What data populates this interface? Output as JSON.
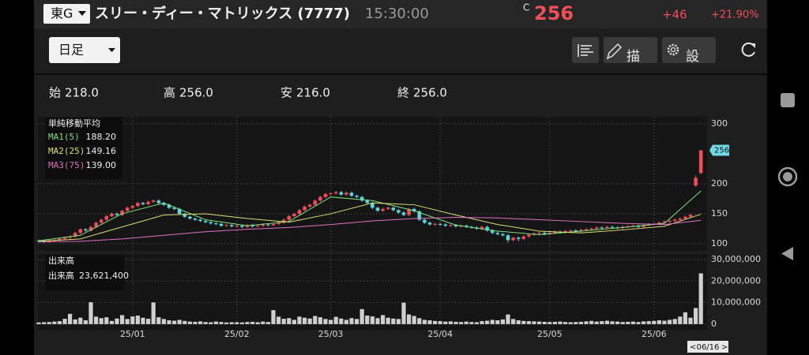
{
  "header": {
    "market": "東G",
    "title": "スリー・ディー・マトリックス (7777)",
    "time": "15:30:00",
    "price_flag": "C",
    "price": "256",
    "change": "+46",
    "change_pct": "+21.90%"
  },
  "toolbar": {
    "period": "日足",
    "draw": "描画",
    "settings": "設定"
  },
  "ohlc": [
    {
      "label": "始",
      "value": "218.0"
    },
    {
      "label": "高",
      "value": "256.0"
    },
    {
      "label": "安",
      "value": "216.0"
    },
    {
      "label": "終",
      "value": "256.0"
    }
  ],
  "cursor_date": "06/16",
  "chart_data": [
    {
      "type": "candlestick",
      "legend_title": "単純移動平均",
      "up_color": "#ef4d5a",
      "down_color": "#5cd6e0",
      "grid": true,
      "ylim": [
        88,
        312
      ],
      "yticks": [
        100,
        150,
        200,
        300
      ],
      "categories": [
        null,
        null,
        null,
        null,
        null,
        null,
        null,
        null,
        null,
        null,
        null,
        null,
        null,
        null,
        null,
        null,
        null,
        null,
        "25/01",
        null,
        null,
        null,
        null,
        null,
        null,
        null,
        null,
        null,
        null,
        null,
        null,
        null,
        null,
        null,
        null,
        null,
        null,
        null,
        "25/02",
        null,
        null,
        null,
        null,
        null,
        null,
        null,
        null,
        null,
        null,
        null,
        null,
        null,
        null,
        null,
        null,
        null,
        "25/03",
        null,
        null,
        null,
        null,
        null,
        null,
        null,
        null,
        null,
        null,
        null,
        null,
        null,
        null,
        null,
        null,
        null,
        null,
        null,
        null,
        "25/04",
        null,
        null,
        null,
        null,
        null,
        null,
        null,
        null,
        null,
        null,
        null,
        null,
        null,
        null,
        null,
        null,
        null,
        null,
        null,
        null,
        "25/05",
        null,
        null,
        null,
        null,
        null,
        null,
        null,
        null,
        null,
        null,
        null,
        null,
        null,
        null,
        null,
        null,
        null,
        null,
        null,
        "25/06",
        null,
        null,
        null,
        null,
        null,
        null,
        null,
        null,
        null
      ],
      "candles": [
        [
          105,
          107,
          102,
          104
        ],
        [
          104,
          106,
          101,
          103
        ],
        [
          103,
          107,
          101,
          105
        ],
        [
          105,
          108,
          103,
          106
        ],
        [
          106,
          110,
          104,
          108
        ],
        [
          108,
          112,
          106,
          110
        ],
        [
          110,
          114,
          108,
          112
        ],
        [
          112,
          120,
          110,
          118
        ],
        [
          118,
          126,
          116,
          124
        ],
        [
          124,
          126,
          120,
          122
        ],
        [
          122,
          130,
          120,
          128
        ],
        [
          128,
          137,
          126,
          135
        ],
        [
          135,
          142,
          133,
          140
        ],
        [
          140,
          148,
          138,
          146
        ],
        [
          146,
          152,
          144,
          150
        ],
        [
          150,
          152,
          146,
          148
        ],
        [
          148,
          157,
          146,
          155
        ],
        [
          155,
          162,
          153,
          160
        ],
        [
          160,
          165,
          158,
          163
        ],
        [
          163,
          170,
          161,
          168
        ],
        [
          168,
          170,
          164,
          166
        ],
        [
          166,
          172,
          164,
          170
        ],
        [
          170,
          174,
          168,
          172
        ],
        [
          172,
          174,
          166,
          168
        ],
        [
          168,
          170,
          163,
          165
        ],
        [
          165,
          167,
          158,
          160
        ],
        [
          160,
          162,
          156,
          158
        ],
        [
          158,
          160,
          148,
          150
        ],
        [
          150,
          152,
          143,
          145
        ],
        [
          145,
          147,
          140,
          142
        ],
        [
          142,
          144,
          138,
          140
        ],
        [
          140,
          142,
          136,
          138
        ],
        [
          138,
          140,
          134,
          136
        ],
        [
          136,
          138,
          132,
          134
        ],
        [
          134,
          136,
          131,
          133
        ],
        [
          133,
          135,
          128,
          130
        ],
        [
          130,
          133,
          128,
          131
        ],
        [
          131,
          133,
          127,
          129
        ],
        [
          129,
          132,
          127,
          130
        ],
        [
          130,
          132,
          126,
          128
        ],
        [
          128,
          133,
          126,
          131
        ],
        [
          131,
          133,
          127,
          129
        ],
        [
          129,
          132,
          127,
          130
        ],
        [
          130,
          134,
          128,
          132
        ],
        [
          132,
          134,
          129,
          131
        ],
        [
          131,
          135,
          129,
          133
        ],
        [
          133,
          137,
          131,
          135
        ],
        [
          135,
          142,
          133,
          140
        ],
        [
          140,
          148,
          138,
          146
        ],
        [
          146,
          152,
          144,
          150
        ],
        [
          150,
          158,
          148,
          156
        ],
        [
          156,
          164,
          154,
          162
        ],
        [
          162,
          167,
          160,
          165
        ],
        [
          165,
          174,
          163,
          172
        ],
        [
          172,
          180,
          170,
          178
        ],
        [
          178,
          185,
          176,
          183
        ],
        [
          183,
          186,
          181,
          184
        ],
        [
          184,
          188,
          182,
          186
        ],
        [
          186,
          188,
          180,
          182
        ],
        [
          182,
          187,
          180,
          185
        ],
        [
          185,
          187,
          178,
          180
        ],
        [
          180,
          182,
          176,
          178
        ],
        [
          178,
          180,
          170,
          172
        ],
        [
          172,
          174,
          166,
          168
        ],
        [
          168,
          170,
          158,
          160
        ],
        [
          160,
          162,
          153,
          155
        ],
        [
          155,
          160,
          153,
          158
        ],
        [
          158,
          162,
          156,
          160
        ],
        [
          160,
          162,
          154,
          156
        ],
        [
          156,
          158,
          150,
          152
        ],
        [
          152,
          154,
          146,
          148
        ],
        [
          148,
          160,
          146,
          158
        ],
        [
          158,
          160,
          152,
          154
        ],
        [
          154,
          156,
          138,
          140
        ],
        [
          140,
          142,
          133,
          135
        ],
        [
          135,
          137,
          130,
          132
        ],
        [
          132,
          135,
          130,
          133
        ],
        [
          133,
          135,
          130,
          132
        ],
        [
          132,
          134,
          128,
          130
        ],
        [
          130,
          133,
          128,
          131
        ],
        [
          131,
          133,
          127,
          129
        ],
        [
          129,
          132,
          127,
          130
        ],
        [
          130,
          132,
          126,
          128
        ],
        [
          128,
          130,
          125,
          127
        ],
        [
          127,
          129,
          123,
          125
        ],
        [
          125,
          130,
          123,
          128
        ],
        [
          128,
          130,
          120,
          122
        ],
        [
          122,
          124,
          116,
          118
        ],
        [
          118,
          120,
          114,
          116
        ],
        [
          116,
          118,
          112,
          114
        ],
        [
          114,
          116,
          102,
          106
        ],
        [
          106,
          112,
          104,
          110
        ],
        [
          110,
          112,
          104,
          108
        ],
        [
          108,
          114,
          106,
          112
        ],
        [
          112,
          117,
          110,
          115
        ],
        [
          115,
          119,
          113,
          117
        ],
        [
          117,
          120,
          115,
          118
        ],
        [
          118,
          120,
          114,
          116
        ],
        [
          116,
          120,
          114,
          118
        ],
        [
          118,
          122,
          116,
          120
        ],
        [
          120,
          122,
          117,
          119
        ],
        [
          119,
          123,
          117,
          121
        ],
        [
          121,
          124,
          119,
          122
        ],
        [
          122,
          124,
          119,
          121
        ],
        [
          121,
          125,
          119,
          123
        ],
        [
          123,
          126,
          121,
          124
        ],
        [
          124,
          127,
          122,
          125
        ],
        [
          125,
          129,
          123,
          127
        ],
        [
          127,
          129,
          124,
          126
        ],
        [
          126,
          130,
          124,
          128
        ],
        [
          128,
          130,
          125,
          127
        ],
        [
          127,
          129,
          124,
          126
        ],
        [
          126,
          130,
          124,
          128
        ],
        [
          128,
          131,
          126,
          129
        ],
        [
          129,
          132,
          127,
          130
        ],
        [
          130,
          132,
          126,
          128
        ],
        [
          128,
          133,
          126,
          131
        ],
        [
          131,
          134,
          129,
          132
        ],
        [
          132,
          135,
          130,
          133
        ],
        [
          133,
          137,
          131,
          135
        ],
        [
          135,
          139,
          133,
          137
        ],
        [
          137,
          140,
          135,
          138
        ],
        [
          138,
          142,
          136,
          140
        ],
        [
          140,
          144,
          138,
          142
        ],
        [
          142,
          147,
          140,
          145
        ],
        [
          145,
          150,
          143,
          148
        ],
        [
          197,
          214,
          195,
          210
        ],
        [
          218,
          256,
          216,
          256
        ]
      ],
      "series": [
        {
          "name": "MA1(5)",
          "color": "#7ee07e",
          "current": {
            "value": 188.2,
            "label": "188.20"
          },
          "x": [
            0,
            8,
            16,
            24,
            32,
            40,
            48,
            56,
            64,
            72,
            80,
            88,
            96,
            104,
            112,
            120,
            127
          ],
          "values": [
            105,
            114,
            150,
            168,
            140,
            130,
            137,
            178,
            172,
            155,
            131,
            121,
            115,
            121,
            127,
            134,
            188.2
          ]
        },
        {
          "name": "MA2(25)",
          "color": "#d8e070",
          "current": {
            "value": 149.16,
            "label": "149.16"
          },
          "x": [
            0,
            8,
            16,
            24,
            32,
            40,
            48,
            56,
            64,
            72,
            80,
            88,
            96,
            104,
            112,
            120,
            127
          ],
          "values": [
            104,
            108,
            128,
            148,
            150,
            142,
            136,
            150,
            168,
            165,
            148,
            132,
            121,
            118,
            123,
            129,
            149.16
          ]
        },
        {
          "name": "MA3(75)",
          "color": "#e070c0",
          "current": {
            "value": 139,
            "label": "139.00"
          },
          "x": [
            0,
            8,
            16,
            24,
            32,
            40,
            48,
            56,
            64,
            72,
            80,
            88,
            96,
            104,
            112,
            120,
            127
          ],
          "values": [
            103,
            104,
            108,
            114,
            120,
            124,
            127,
            132,
            138,
            142,
            144,
            143,
            140,
            137,
            134,
            132,
            139
          ]
        }
      ]
    },
    {
      "type": "bar",
      "title": "出来高",
      "legend_name": "出来高",
      "color": "#cfcfcf",
      "grid": true,
      "current": {
        "value": 23621400,
        "label": "23,621,400"
      },
      "ylim": [
        -2600000,
        32600000
      ],
      "yticks": [
        0,
        {
          "value": 10000000,
          "label": "10,000,000"
        },
        {
          "value": 20000000,
          "label": "20,000,000"
        },
        {
          "value": 30000000,
          "label": "30,000,000"
        }
      ],
      "values": [
        800000,
        900000,
        1000000,
        1200000,
        1400000,
        2500000,
        4800000,
        2200000,
        3000000,
        1800000,
        10200000,
        3500000,
        2800000,
        3200000,
        1500000,
        2600000,
        4200000,
        2400000,
        3600000,
        4000000,
        3000000,
        2500000,
        10100000,
        3200000,
        2400000,
        1800000,
        1600000,
        2000000,
        1500000,
        1200000,
        1100000,
        1300000,
        1000000,
        900000,
        1200000,
        1000000,
        800000,
        900000,
        900000,
        800000,
        1000000,
        1100000,
        900000,
        1200000,
        1000000,
        6500000,
        3500000,
        2500000,
        2800000,
        2000000,
        3500000,
        3000000,
        2600000,
        3800000,
        3200000,
        2400000,
        2000000,
        3400000,
        2600000,
        2000000,
        2800000,
        2400000,
        7000000,
        4000000,
        3600000,
        2800000,
        4200000,
        3000000,
        2600000,
        2400000,
        10000000,
        4500000,
        3800000,
        2800000,
        2000000,
        1800000,
        1500000,
        1400000,
        1200000,
        1300000,
        1100000,
        1000000,
        1200000,
        1000000,
        900000,
        1400000,
        1600000,
        2000000,
        1800000,
        2200000,
        4500000,
        2400000,
        1800000,
        1500000,
        1400000,
        1300000,
        1200000,
        1100000,
        1000000,
        1100000,
        1200000,
        1000000,
        900000,
        1000000,
        1100000,
        1300000,
        1500000,
        1200000,
        1400000,
        1600000,
        1300000,
        1200000,
        1000000,
        1100000,
        1200000,
        1000000,
        1300000,
        1400000,
        1500000,
        1800000,
        1600000,
        2000000,
        2400000,
        3500000,
        5500000,
        3000000,
        7500000,
        23621400
      ]
    }
  ]
}
